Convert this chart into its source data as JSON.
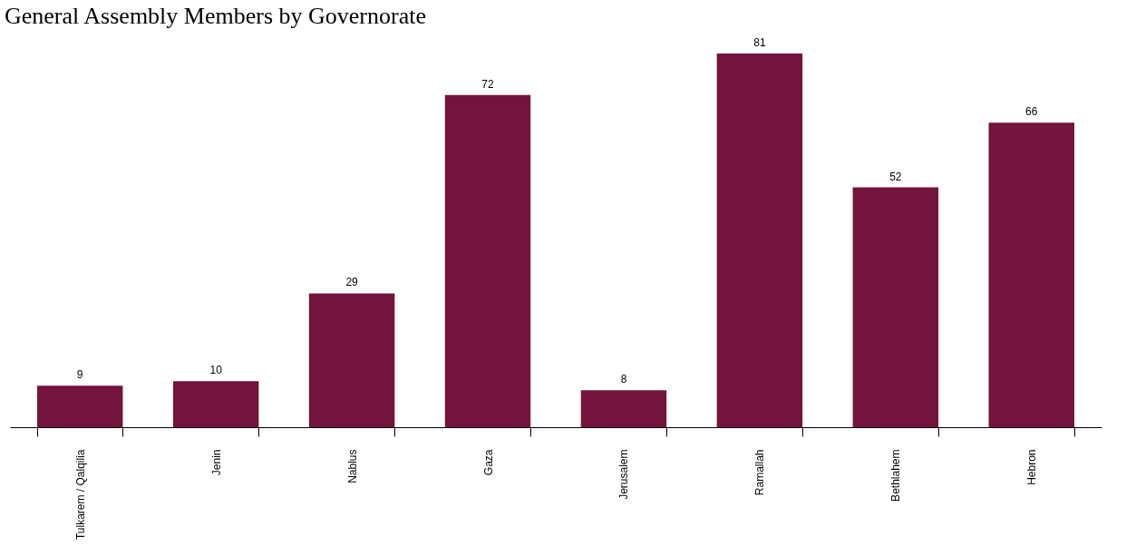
{
  "chart_data": {
    "type": "bar",
    "title": "General Assembly Members by Governorate",
    "categories": [
      "Tulkarem / Qalqilia",
      "Jenin",
      "Nablus",
      "Gaza",
      "Jerusalem",
      "Ramallah",
      "Bethlahem",
      "Hebron"
    ],
    "values": [
      9,
      10,
      29,
      72,
      8,
      81,
      52,
      66
    ],
    "color": "#73143d",
    "data_labels": true
  }
}
